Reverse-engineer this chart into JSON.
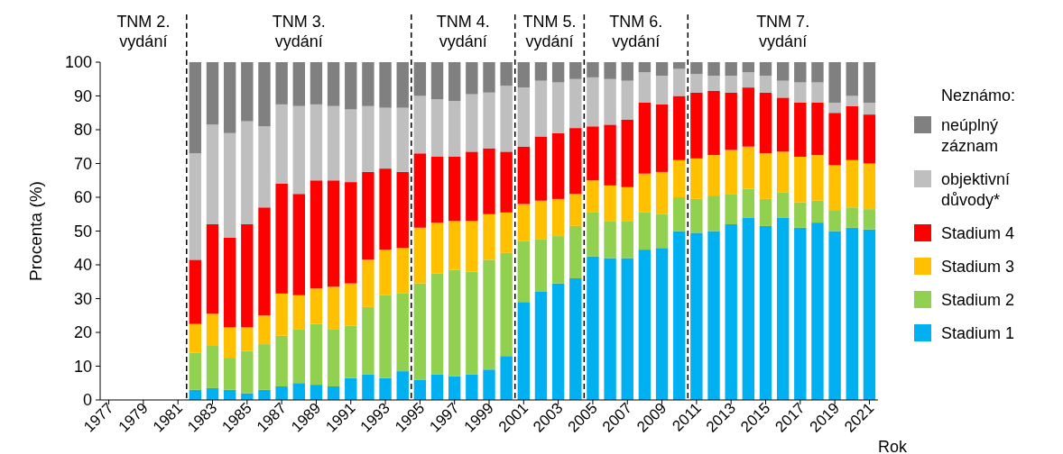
{
  "chart_data": {
    "type": "bar",
    "stacked": true,
    "xlabel": "Rok",
    "ylabel": "Procenta (%)",
    "legend_title": "Neznámo:",
    "legend": "right",
    "x": [
      1982,
      1983,
      1984,
      1985,
      1986,
      1987,
      1988,
      1989,
      1990,
      1991,
      1992,
      1993,
      1994,
      1995,
      1996,
      1997,
      1998,
      1999,
      2000,
      2001,
      2002,
      2003,
      2004,
      2005,
      2006,
      2007,
      2008,
      2009,
      2010,
      2011,
      2012,
      2013,
      2014,
      2015,
      2016,
      2017,
      2018,
      2019,
      2020,
      2021
    ],
    "xlim": [
      1976.5,
      2021.5
    ],
    "xticks": [
      1977,
      1979,
      1981,
      1983,
      1985,
      1987,
      1989,
      1991,
      1993,
      1995,
      1997,
      1999,
      2001,
      2003,
      2005,
      2007,
      2009,
      2011,
      2013,
      2015,
      2017,
      2019,
      2021
    ],
    "ylim": [
      0,
      100
    ],
    "yticks": [
      0,
      10,
      20,
      30,
      40,
      50,
      60,
      70,
      80,
      90,
      100
    ],
    "series": [
      {
        "name": "Stadium 1",
        "color": "#00b0f0",
        "values": [
          3,
          3.5,
          3,
          2,
          3,
          4,
          5,
          4.5,
          4,
          6.5,
          7.5,
          6.5,
          8.5,
          6,
          7.5,
          7,
          7.5,
          9,
          13,
          29,
          32,
          34.5,
          36,
          42.5,
          42,
          42,
          44.5,
          45,
          50,
          49.5,
          50,
          52,
          54,
          51.5,
          54,
          51,
          52.5,
          50,
          51,
          50.5
        ]
      },
      {
        "name": "Stadium 2",
        "color": "#92d050",
        "values": [
          11,
          12.5,
          9.5,
          12.5,
          13.5,
          15,
          16,
          18,
          17,
          15.5,
          20,
          24.5,
          23,
          28.5,
          30,
          31.5,
          30.5,
          32.5,
          30.5,
          18,
          15.5,
          14,
          15.5,
          13,
          11,
          11,
          11,
          10,
          10,
          10,
          10.5,
          9,
          8.5,
          8,
          7.5,
          7.5,
          6.5,
          6,
          6,
          6
        ]
      },
      {
        "name": "Stadium 3",
        "color": "#ffc000",
        "values": [
          8.5,
          9.5,
          9,
          7,
          8.5,
          12.5,
          10,
          10.5,
          12.5,
          12.5,
          14,
          13.5,
          13.5,
          16.5,
          15,
          14.5,
          15,
          13.5,
          12,
          11,
          11.5,
          11,
          9.5,
          9.5,
          10.5,
          10,
          11.5,
          12.5,
          11,
          12,
          12,
          13,
          12.5,
          13.5,
          12,
          13.5,
          13.5,
          13.5,
          14,
          13.5
        ]
      },
      {
        "name": "Stadium 4",
        "color": "#ff0000",
        "values": [
          19,
          26.5,
          26.5,
          30.5,
          32,
          32.5,
          30,
          32,
          31.5,
          30,
          26,
          24,
          22.5,
          22,
          19.5,
          19,
          20.5,
          19.5,
          18,
          17,
          19,
          19.5,
          19.5,
          16,
          18,
          20,
          21,
          20,
          19,
          19.5,
          19,
          17,
          17.5,
          18,
          16,
          16,
          15.5,
          15.5,
          16,
          14.5
        ]
      },
      {
        "name": "objektivní důvody*",
        "color": "#bfbfbf",
        "values": [
          31.5,
          29.5,
          31,
          30.5,
          24,
          23.5,
          26,
          22.5,
          22,
          21.5,
          19.5,
          18,
          19,
          17,
          17,
          16.5,
          17,
          16.5,
          19.5,
          17.5,
          16.5,
          15,
          14.5,
          14.5,
          13.5,
          11.5,
          9,
          8.5,
          8,
          5.5,
          4.5,
          5,
          4.5,
          5,
          5,
          6,
          6,
          3,
          3,
          3.5
        ]
      },
      {
        "name": "neúplný záznam",
        "color": "#808080",
        "values": [
          27,
          18.5,
          21,
          17.5,
          19,
          12.5,
          13,
          12.5,
          13,
          14,
          13,
          13.5,
          13.5,
          10,
          11,
          11.5,
          9.5,
          9,
          7,
          7.5,
          5.5,
          6,
          5,
          4.5,
          5,
          5.5,
          3,
          4,
          2,
          3.5,
          4,
          4,
          3,
          4,
          5.5,
          6,
          6,
          12,
          10,
          12
        ]
      }
    ],
    "ref_lines": [
      {
        "axis": "x",
        "value": 1981.5,
        "line_style": "dashed"
      },
      {
        "axis": "x",
        "value": 1994.5,
        "line_style": "dashed"
      },
      {
        "axis": "x",
        "value": 2000.5,
        "line_style": "dashed"
      },
      {
        "axis": "x",
        "value": 2004.5,
        "line_style": "dashed"
      },
      {
        "axis": "x",
        "value": 2010.5,
        "line_style": "dashed"
      }
    ],
    "annotations": [
      "TNM 2.\nvydání",
      "TNM 3.\nvydání",
      "TNM 4.\nvydání",
      "TNM 5.\nvydání",
      "TNM 6.\nvydání",
      "TNM 7.\nvydání"
    ]
  }
}
